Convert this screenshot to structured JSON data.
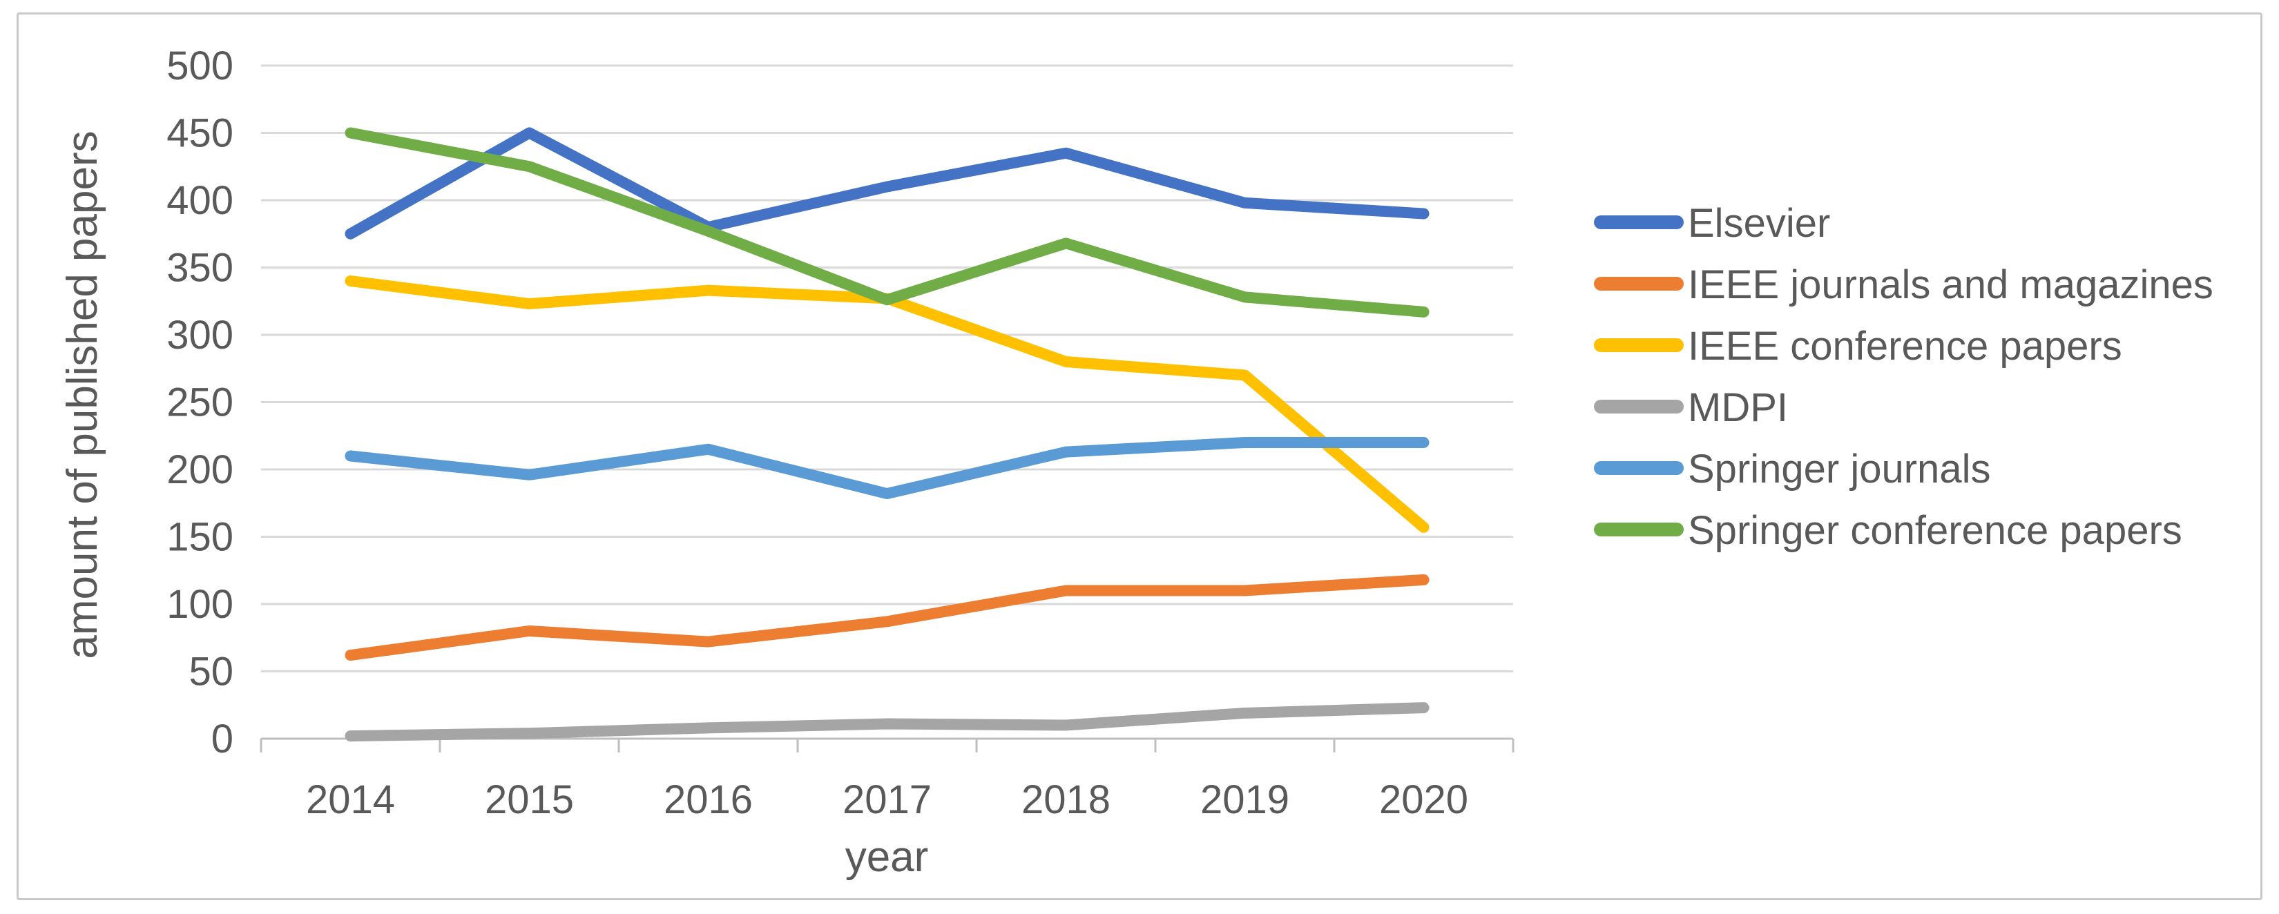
{
  "chart_data": {
    "type": "line",
    "title": "",
    "xlabel": "year",
    "ylabel": "amount of published papers",
    "categories": [
      "2014",
      "2015",
      "2016",
      "2017",
      "2018",
      "2019",
      "2020"
    ],
    "series": [
      {
        "name": "Elsevier",
        "color": "#4472C4",
        "values": [
          375,
          450,
          380,
          410,
          435,
          398,
          390
        ]
      },
      {
        "name": "IEEE journals and magazines",
        "color": "#ED7D31",
        "values": [
          62,
          80,
          72,
          87,
          110,
          110,
          118
        ]
      },
      {
        "name": "IEEE conference papers",
        "color": "#FFC000",
        "values": [
          340,
          323,
          333,
          327,
          280,
          270,
          157
        ]
      },
      {
        "name": "MDPI",
        "color": "#A5A5A5",
        "values": [
          2,
          4,
          8,
          11,
          10,
          19,
          23
        ]
      },
      {
        "name": "Springer journals",
        "color": "#5B9BD5",
        "values": [
          210,
          196,
          215,
          182,
          213,
          220,
          220
        ]
      },
      {
        "name": "Springer conference papers",
        "color": "#70AD47",
        "values": [
          450,
          425,
          377,
          326,
          368,
          328,
          317
        ]
      }
    ],
    "y_axis": {
      "min": 0,
      "max": 500,
      "step": 50,
      "tick_labels": [
        "0",
        "50",
        "100",
        "150",
        "200",
        "250",
        "300",
        "350",
        "400",
        "450",
        "500"
      ]
    },
    "x_axis": {
      "tick_labels": [
        "2014",
        "2015",
        "2016",
        "2017",
        "2018",
        "2019",
        "2020"
      ]
    },
    "grid": true,
    "legend_position": "right"
  },
  "colors": {
    "axis_text": "#595959",
    "gridline": "#D9D9D9",
    "axis_line": "#BFBFBF",
    "border": "#C9C9C9",
    "background": "#FFFFFF"
  }
}
